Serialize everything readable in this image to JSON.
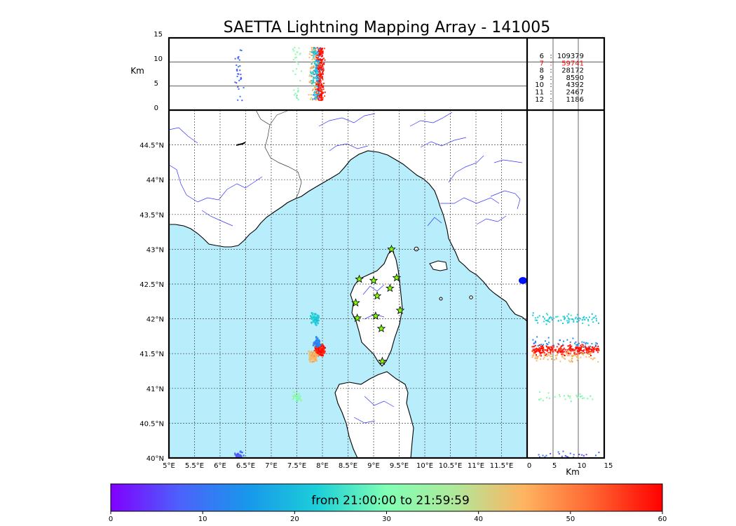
{
  "chart_data": {
    "type": "scatter",
    "title": "SAETTA Lightning Mapping Array - 141005",
    "map_panel": {
      "lon_ticks": [
        "5°E",
        "5.5°E",
        "6°E",
        "6.5°E",
        "7°E",
        "7.5°E",
        "8°E",
        "8.5°E",
        "9°E",
        "9.5°E",
        "10°E",
        "10.5°E",
        "11°E",
        "11.5°E"
      ],
      "lat_ticks": [
        "44.5°N",
        "44°N",
        "43.5°N",
        "43°N",
        "42.5°N",
        "42°N",
        "41.5°N",
        "41°N",
        "40.5°N",
        "40°N"
      ],
      "xlim": [
        5,
        12
      ],
      "ylim": [
        40,
        45
      ],
      "grid": true,
      "stations": [
        {
          "lon": 9.35,
          "lat": 43.0
        },
        {
          "lon": 8.72,
          "lat": 42.57
        },
        {
          "lon": 9.0,
          "lat": 42.55
        },
        {
          "lon": 9.45,
          "lat": 42.59
        },
        {
          "lon": 9.32,
          "lat": 42.44
        },
        {
          "lon": 9.07,
          "lat": 42.33
        },
        {
          "lon": 8.65,
          "lat": 42.23
        },
        {
          "lon": 9.52,
          "lat": 42.12
        },
        {
          "lon": 8.68,
          "lat": 42.01
        },
        {
          "lon": 9.04,
          "lat": 42.04
        },
        {
          "lon": 9.15,
          "lat": 41.86
        },
        {
          "lon": 9.17,
          "lat": 41.39
        }
      ],
      "clusters": [
        {
          "lon": 7.95,
          "lat": 41.55,
          "time_min": 58,
          "count": 300
        },
        {
          "lon": 7.82,
          "lat": 41.45,
          "time_min": 45,
          "count": 80
        },
        {
          "lon": 7.9,
          "lat": 41.65,
          "time_min": 12,
          "count": 40
        },
        {
          "lon": 7.85,
          "lat": 42.0,
          "time_min": 22,
          "count": 80
        },
        {
          "lon": 7.5,
          "lat": 40.88,
          "time_min": 32,
          "count": 30
        },
        {
          "lon": 6.37,
          "lat": 40.03,
          "time_min": 8,
          "count": 30
        }
      ]
    },
    "top_panel": {
      "ylabel": "Km",
      "yticks": [
        "15",
        "10",
        "5",
        "0"
      ],
      "ylim": [
        0,
        15
      ],
      "gridlines_km": [
        5,
        10
      ]
    },
    "side_panel": {
      "xlabel": "Km",
      "xticks": [
        "0",
        "5",
        "10",
        "15"
      ],
      "xlim": [
        0,
        15
      ],
      "gridlines_km": [
        5,
        10
      ]
    },
    "stats": [
      {
        "label": "6",
        "count": "109379",
        "color": "#000000"
      },
      {
        "label": "7",
        "count": "59741",
        "color": "#ff0000"
      },
      {
        "label": "8",
        "count": "28172",
        "color": "#000000"
      },
      {
        "label": "9",
        "count": "8590",
        "color": "#000000"
      },
      {
        "label": "10",
        "count": "4392",
        "color": "#000000"
      },
      {
        "label": "11",
        "count": "2467",
        "color": "#000000"
      },
      {
        "label": "12",
        "count": "1186",
        "color": "#000000"
      }
    ],
    "colorbar": {
      "min": 0,
      "max": 60,
      "ticks": [
        "0",
        "10",
        "20",
        "30",
        "40",
        "50",
        "60"
      ],
      "caption": "from 21:00:00 to 21:59:59",
      "colormap": "rainbow"
    },
    "colors": {
      "sea": "#b8edfc",
      "land": "#ffffff",
      "rivers": "#3333ff",
      "station_fill": "#7fff00"
    }
  }
}
